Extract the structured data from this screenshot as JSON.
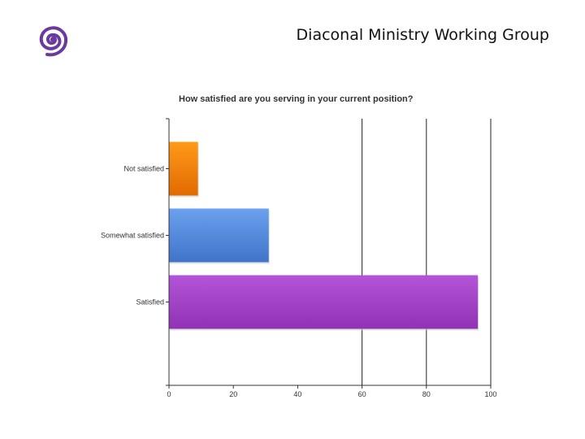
{
  "header": {
    "title": "Diaconal Ministry Working Group",
    "logo_icon": "spiral-logo-icon",
    "logo_color": "#6b3a9e"
  },
  "chart_data": {
    "type": "bar",
    "orientation": "horizontal",
    "title": "How satisfied are you serving in your current position?",
    "xlabel": "",
    "ylabel": "",
    "categories": [
      "Not satisfied",
      "Somewhat satisfied",
      "Satisfied"
    ],
    "values": [
      9,
      31,
      96
    ],
    "xlim": [
      0,
      100
    ],
    "x_ticks": [
      0,
      20,
      40,
      60,
      80,
      100
    ],
    "grid": "vertical lines at 60, 80, 100",
    "legend": "none",
    "colors": [
      "#ee7d10",
      "#5a8fdc",
      "#a246c8"
    ]
  }
}
